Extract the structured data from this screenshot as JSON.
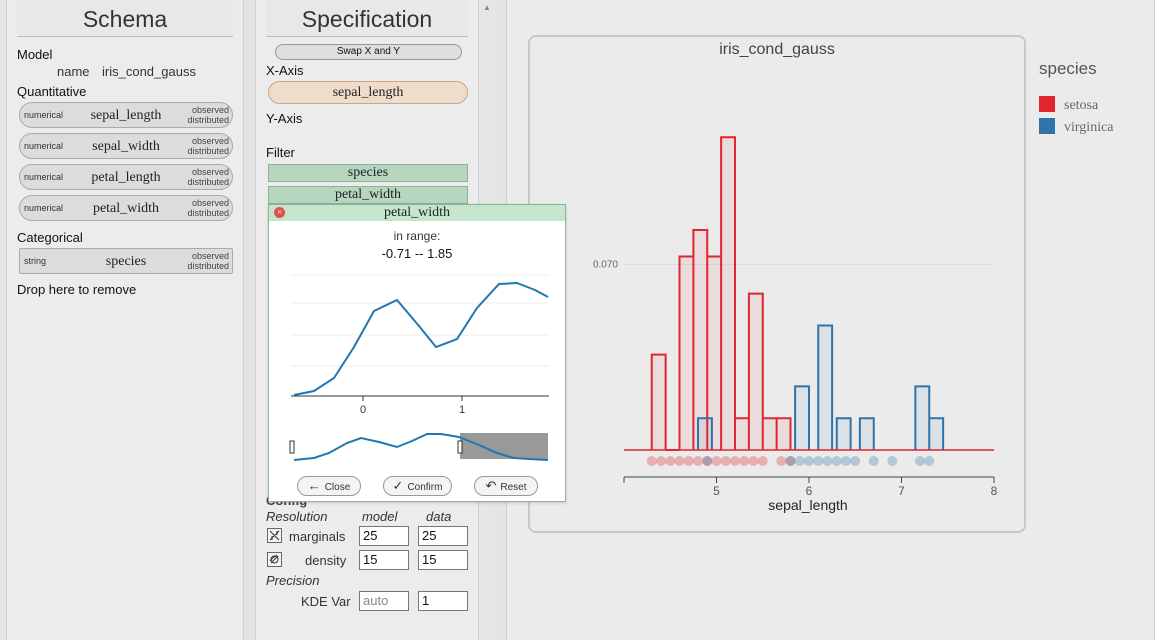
{
  "schema": {
    "title": "Schema",
    "model_label": "Model",
    "name_key": "name",
    "name_value": "iris_cond_gauss",
    "quantitative_label": "Quantitative",
    "quantitative_fields": [
      {
        "type": "numerical",
        "name": "sepal_length",
        "obs1": "observed",
        "obs2": "distributed"
      },
      {
        "type": "numerical",
        "name": "sepal_width",
        "obs1": "observed",
        "obs2": "distributed"
      },
      {
        "type": "numerical",
        "name": "petal_length",
        "obs1": "observed",
        "obs2": "distributed"
      },
      {
        "type": "numerical",
        "name": "petal_width",
        "obs1": "observed",
        "obs2": "distributed"
      }
    ],
    "categorical_label": "Categorical",
    "categorical_fields": [
      {
        "type": "string",
        "name": "species",
        "obs1": "observed",
        "obs2": "distributed"
      }
    ],
    "drop_label": "Drop here to remove"
  },
  "spec": {
    "title": "Specification",
    "swap_label": "Swap X and Y",
    "xaxis_label": "X-Axis",
    "xaxis_field": "sepal_length",
    "yaxis_label": "Y-Axis",
    "filter_label": "Filter",
    "filters": [
      "species",
      "petal_width"
    ],
    "config_label": "Config",
    "resolution_label": "Resolution",
    "model_col": "model",
    "data_col": "data",
    "marginals_label": "marginals",
    "marginals_model": "25",
    "marginals_data": "25",
    "density_label": "density",
    "density_model": "15",
    "density_data": "15",
    "precision_label": "Precision",
    "kde_label": "KDE Var",
    "kde_model": "auto",
    "kde_data": "1"
  },
  "popup": {
    "title": "petal_width",
    "range_label": "in range:",
    "range_value": "-0.71 -- 1.85",
    "tick0": "0",
    "tick1": "1",
    "close_label": "Close",
    "confirm_label": "Confirm",
    "reset_label": "Reset"
  },
  "legend": {
    "title": "species",
    "items": [
      {
        "label": "setosa",
        "color": "#e0262e"
      },
      {
        "label": "virginica",
        "color": "#2f73a8"
      }
    ]
  },
  "chart_data": {
    "type": "bar",
    "title": "iris_cond_gauss",
    "xlabel": "sepal_length",
    "ylabel": "",
    "xlim": [
      4.0,
      8.0
    ],
    "xticks": [
      5,
      6,
      7,
      8
    ],
    "ytick_label": "0.070",
    "ytick_value": 0.07,
    "bin_width": 0.15,
    "series": [
      {
        "name": "setosa",
        "color": "#e0262e",
        "bins": [
          {
            "x0": 4.3,
            "y": 0.036
          },
          {
            "x0": 4.45,
            "y": 0.0
          },
          {
            "x0": 4.6,
            "y": 0.073
          },
          {
            "x0": 4.75,
            "y": 0.083
          },
          {
            "x0": 4.9,
            "y": 0.073
          },
          {
            "x0": 5.05,
            "y": 0.118
          },
          {
            "x0": 5.2,
            "y": 0.012
          },
          {
            "x0": 5.35,
            "y": 0.059
          },
          {
            "x0": 5.5,
            "y": 0.012
          },
          {
            "x0": 5.65,
            "y": 0.012
          }
        ]
      },
      {
        "name": "virginica",
        "color": "#2f73a8",
        "bins": [
          {
            "x0": 4.8,
            "y": 0.012
          },
          {
            "x0": 5.85,
            "y": 0.024
          },
          {
            "x0": 6.1,
            "y": 0.047
          },
          {
            "x0": 6.3,
            "y": 0.012
          },
          {
            "x0": 6.55,
            "y": 0.012
          },
          {
            "x0": 7.15,
            "y": 0.024
          },
          {
            "x0": 7.3,
            "y": 0.012
          }
        ]
      }
    ],
    "points": [
      {
        "species": "setosa",
        "x": [
          4.3,
          4.4,
          4.5,
          4.6,
          4.7,
          4.8,
          4.9,
          5.0,
          5.1,
          5.2,
          5.3,
          5.4,
          5.5,
          5.7,
          5.8
        ]
      },
      {
        "species": "virginica",
        "x": [
          4.9,
          5.8,
          5.9,
          6.0,
          6.1,
          6.2,
          6.3,
          6.4,
          6.5,
          6.7,
          6.9,
          7.2,
          7.3
        ]
      }
    ]
  }
}
